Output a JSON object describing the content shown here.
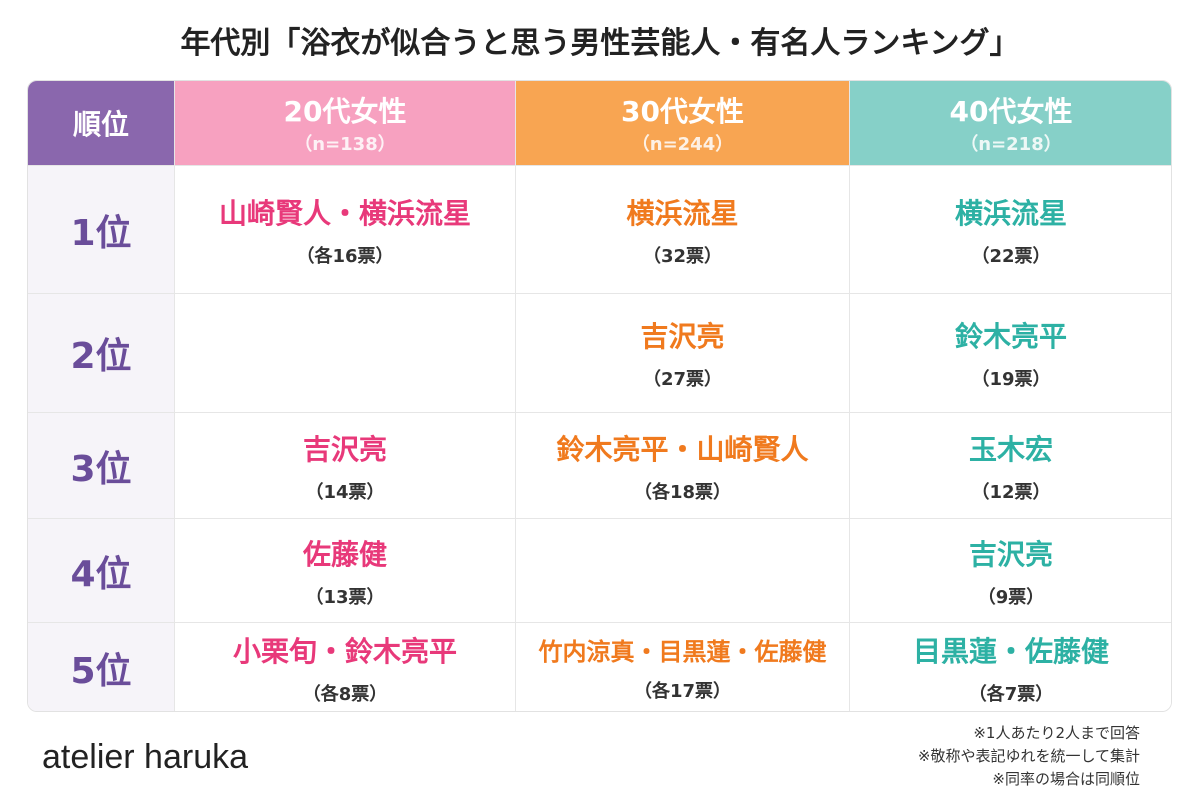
{
  "title": "年代別「浴衣が似合うと思う男性芸能人・有名人ランキング」",
  "table": {
    "rank_header": "順位",
    "columns": [
      {
        "label": "20代女性",
        "n": "（n=138）"
      },
      {
        "label": "30代女性",
        "n": "（n=244）"
      },
      {
        "label": "40代女性",
        "n": "（n=218）"
      }
    ],
    "rows": [
      {
        "rank": "1位",
        "cells": [
          {
            "name": "山崎賢人・横浜流星",
            "votes": "（各16票）"
          },
          {
            "name": "横浜流星",
            "votes": "（32票）"
          },
          {
            "name": "横浜流星",
            "votes": "（22票）"
          }
        ]
      },
      {
        "rank": "2位",
        "cells": [
          null,
          {
            "name": "吉沢亮",
            "votes": "（27票）"
          },
          {
            "name": "鈴木亮平",
            "votes": "（19票）"
          }
        ]
      },
      {
        "rank": "3位",
        "cells": [
          {
            "name": "吉沢亮",
            "votes": "（14票）"
          },
          {
            "name": "鈴木亮平・山崎賢人",
            "votes": "（各18票）"
          },
          {
            "name": "玉木宏",
            "votes": "（12票）"
          }
        ]
      },
      {
        "rank": "4位",
        "cells": [
          {
            "name": "佐藤健",
            "votes": "（13票）"
          },
          null,
          {
            "name": "吉沢亮",
            "votes": "（9票）"
          }
        ]
      },
      {
        "rank": "5位",
        "cells": [
          {
            "name": "小栗旬・鈴木亮平",
            "votes": "（各8票）"
          },
          {
            "name": "竹内涼真・目黒蓮・佐藤健",
            "votes": "（各17票）"
          },
          {
            "name": "目黒蓮・佐藤健",
            "votes": "（各7票）"
          }
        ]
      }
    ]
  },
  "notes": [
    "※1人あたり2人まで回答",
    "※敬称や表記ゆれを統一して集計",
    "※同率の場合は同順位"
  ],
  "brand": "atelier haruka"
}
